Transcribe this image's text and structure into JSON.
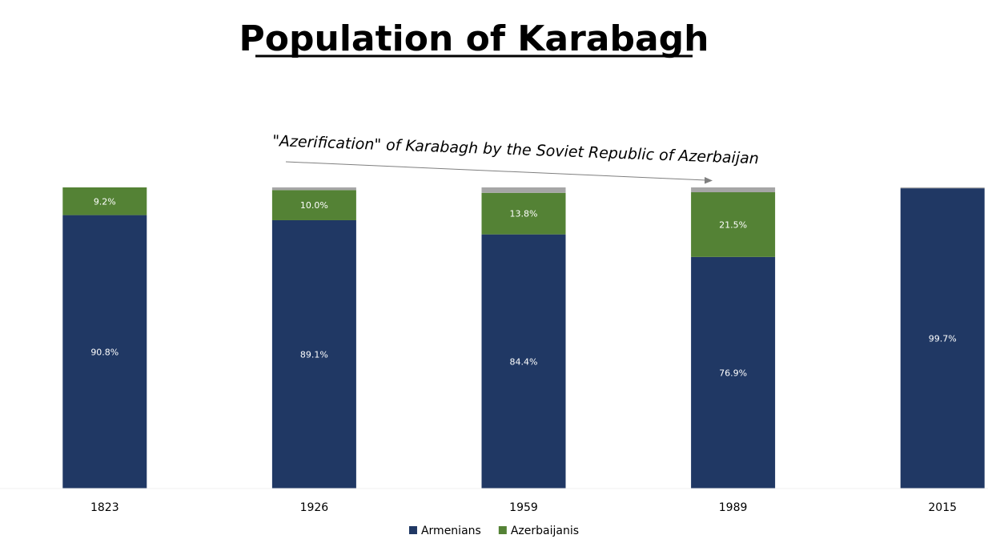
{
  "chart_data": {
    "type": "bar",
    "stacked": true,
    "percent": true,
    "title": "Population of Karabagh",
    "annotation": "\"Azerification\" of Karabagh by the Soviet Republic of Azerbaijan",
    "categories": [
      "1823",
      "1926",
      "1959",
      "1989",
      "2015"
    ],
    "series": [
      {
        "name": "Armenians",
        "color": "#203864",
        "values": [
          90.8,
          89.1,
          84.4,
          76.9,
          99.7
        ],
        "labels": [
          "90.8%",
          "89.1%",
          "84.4%",
          "76.9%",
          "99.7%"
        ]
      },
      {
        "name": "Azerbaijanis",
        "color": "#548235",
        "values": [
          9.2,
          10.0,
          13.8,
          21.5,
          0
        ],
        "labels": [
          "9.2%",
          "10.0%",
          "13.8%",
          "21.5%",
          ""
        ]
      },
      {
        "color": "#a6a6a6",
        "values": [
          0,
          0.9,
          1.8,
          1.6,
          0.3
        ],
        "labels": [
          "",
          "",
          "",
          "",
          ""
        ]
      }
    ],
    "ylim": [
      0,
      100
    ],
    "grid": false,
    "y_axis_visible": false,
    "legend": [
      "Armenians",
      "Azerbaijanis"
    ],
    "legend_position": "bottom"
  }
}
